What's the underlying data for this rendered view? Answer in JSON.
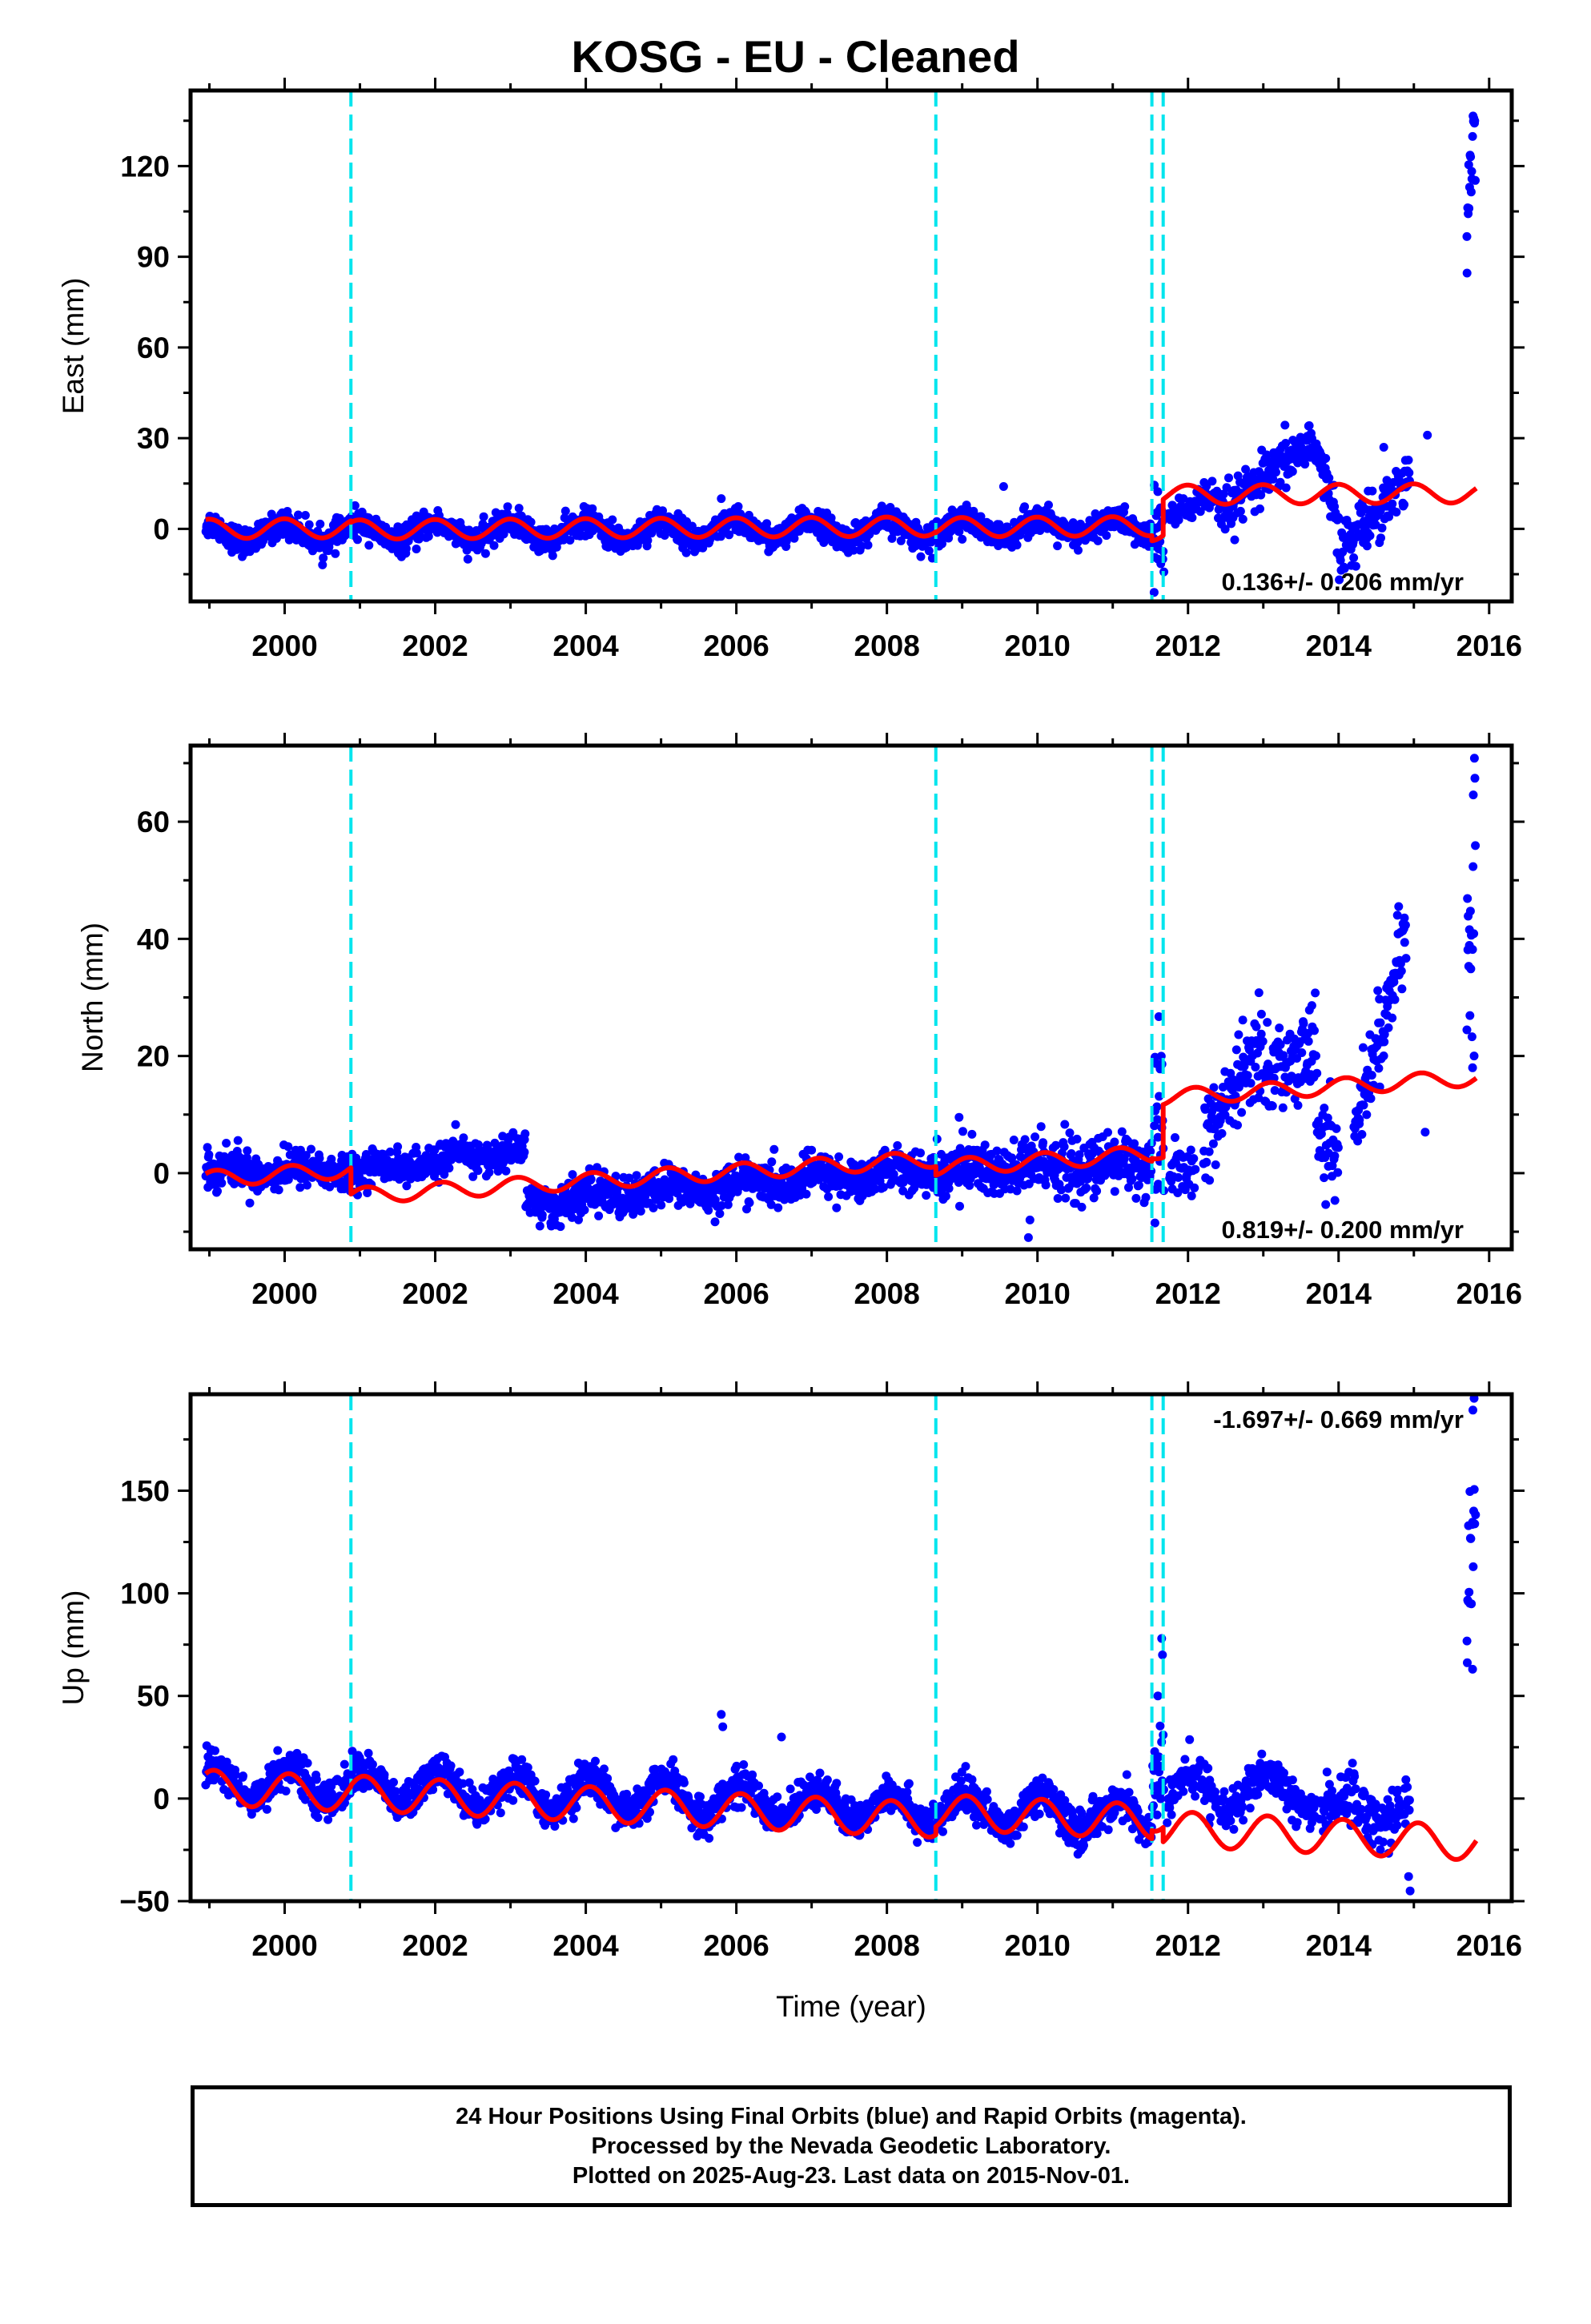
{
  "title": "KOSG  - EU - Cleaned",
  "footer": [
    "24 Hour Positions Using Final Orbits (blue) and Rapid Orbits (magenta).",
    "Processed by the Nevada Geodetic Laboratory.",
    "Plotted on 2025-Aug-23. Last data on 2015-Nov-01."
  ],
  "colors": {
    "data": "#0000ff",
    "model": "#ff0000",
    "step": "#00e5ee",
    "frame": "#000000"
  },
  "chart_data": [
    {
      "type": "scatter",
      "ylabel": "East (mm)",
      "xlabel": "",
      "xlim": [
        1998.75,
        2016.3
      ],
      "ylim": [
        -24,
        145
      ],
      "xticks": [
        2000,
        2002,
        2004,
        2006,
        2008,
        2010,
        2012,
        2014,
        2016
      ],
      "yticks": [
        0,
        30,
        60,
        90,
        120
      ],
      "rate_label": "0.136+/- 0.206 mm/yr",
      "rate_position": "bottom-right",
      "steps": [
        2000.88,
        2008.65,
        2011.52,
        2011.67
      ],
      "series": [
        {
          "role": "daily positions",
          "segments": [
            {
              "x0": 1998.95,
              "x1": 2011.55,
              "offset": -1.5,
              "trend": 0.15,
              "amp": 3.0,
              "phase": 1.6,
              "noise": 2.2,
              "density": 150
            },
            {
              "x0": 2011.55,
              "x1": 2011.68,
              "offset": 0,
              "trend": 0,
              "amp": 0,
              "phase": 0,
              "noise": 8,
              "density": 150
            },
            {
              "x0": 2011.72,
              "x1": 2012.4,
              "offset": 7,
              "trend": 0,
              "amp": 3,
              "phase": 0,
              "noise": 2.5,
              "density": 120
            },
            {
              "x0": 2012.4,
              "x1": 2013.6,
              "offset": 4,
              "trend": 20,
              "amp": 0,
              "phase": 0,
              "noise": 4,
              "density": 120
            },
            {
              "x0": 2013.6,
              "x1": 2014.0,
              "offset": 32,
              "trend": -70,
              "amp": 0,
              "phase": 0,
              "noise": 4,
              "density": 120
            },
            {
              "x0": 2014.0,
              "x1": 2014.95,
              "offset": -8,
              "trend": 28,
              "amp": 0,
              "phase": 0,
              "noise": 4.5,
              "density": 120
            },
            {
              "x0": 2015.7,
              "x1": 2015.82,
              "offset": 100,
              "trend": 300,
              "amp": 0,
              "phase": 0,
              "noise": 10,
              "density": 160
            }
          ],
          "outliers": [
            [
              2011.55,
              -21
            ],
            [
              2011.6,
              -10
            ],
            [
              2005.8,
              10
            ],
            [
              2009.55,
              14
            ],
            [
              2015.18,
              31
            ],
            [
              2014.6,
              27
            ]
          ]
        },
        {
          "role": "model fit",
          "segments": [
            {
              "x0": 1998.95,
              "x1": 2000.88,
              "offset": 0.0,
              "trend": 0.136,
              "amp": 3.2,
              "phase": 1.6
            },
            {
              "x0": 2000.88,
              "x1": 2008.65,
              "offset": -0.5,
              "trend": 0.136,
              "amp": 3.2,
              "phase": 1.6
            },
            {
              "x0": 2008.65,
              "x1": 2011.52,
              "offset": -0.8,
              "trend": 0.136,
              "amp": 3.2,
              "phase": 1.6
            },
            {
              "x0": 2011.52,
              "x1": 2011.67,
              "offset": -2.5,
              "trend": 0.136,
              "amp": 3.2,
              "phase": 1.6
            },
            {
              "x0": 2011.67,
              "x1": 2015.83,
              "offset": 9.5,
              "trend": 0.136,
              "amp": 3.2,
              "phase": 1.6
            }
          ]
        }
      ]
    },
    {
      "type": "scatter",
      "ylabel": "North (mm)",
      "xlabel": "",
      "xlim": [
        1998.75,
        2016.3
      ],
      "ylim": [
        -13,
        73
      ],
      "xticks": [
        2000,
        2002,
        2004,
        2006,
        2008,
        2010,
        2012,
        2014,
        2016
      ],
      "yticks": [
        0,
        20,
        40,
        60
      ],
      "rate_label": "0.819+/- 0.200 mm/yr",
      "rate_position": "bottom-right",
      "steps": [
        2000.88,
        2008.65,
        2011.52,
        2011.67
      ],
      "series": [
        {
          "role": "daily positions",
          "segments": [
            {
              "x0": 1998.95,
              "x1": 2000.88,
              "offset": 0.5,
              "trend": 0,
              "amp": 0.8,
              "phase": 0,
              "noise": 1.6,
              "density": 150
            },
            {
              "x0": 2000.88,
              "x1": 2003.2,
              "offset": 0,
              "trend": 1.8,
              "amp": 0.8,
              "phase": 0,
              "noise": 1.4,
              "density": 150
            },
            {
              "x0": 2003.2,
              "x1": 2008.65,
              "offset": -5,
              "trend": 1.05,
              "amp": 1.0,
              "phase": 1.0,
              "noise": 1.7,
              "density": 150
            },
            {
              "x0": 2008.65,
              "x1": 2011.52,
              "offset": 0.5,
              "trend": 0.3,
              "amp": 1.0,
              "phase": 1.0,
              "noise": 2.5,
              "density": 150
            },
            {
              "x0": 2011.55,
              "x1": 2011.68,
              "offset": 6,
              "trend": 0,
              "amp": 0,
              "phase": 0,
              "noise": 8,
              "density": 150
            },
            {
              "x0": 2011.75,
              "x1": 2012.1,
              "offset": 0,
              "trend": 3,
              "amp": 0,
              "phase": 0,
              "noise": 2.5,
              "density": 100
            },
            {
              "x0": 2012.2,
              "x1": 2013.0,
              "offset": 4,
              "trend": 25,
              "amp": 0,
              "phase": 0,
              "noise": 3.5,
              "density": 120
            },
            {
              "x0": 2013.0,
              "x1": 2013.7,
              "offset": 15,
              "trend": 12,
              "amp": 0,
              "phase": 0,
              "noise": 4,
              "density": 120
            },
            {
              "x0": 2013.7,
              "x1": 2014.0,
              "offset": 8,
              "trend": -18,
              "amp": 0,
              "phase": 0,
              "noise": 4,
              "density": 120
            },
            {
              "x0": 2014.2,
              "x1": 2014.9,
              "offset": 6,
              "trend": 50,
              "amp": 0,
              "phase": 0,
              "noise": 3.5,
              "density": 130
            },
            {
              "x0": 2015.7,
              "x1": 2015.82,
              "offset": 28,
              "trend": 250,
              "amp": 0,
              "phase": 0,
              "noise": 9,
              "density": 160
            }
          ],
          "outliers": [
            [
              2009.88,
              -11
            ],
            [
              2009.9,
              -8
            ],
            [
              2011.56,
              -8.5
            ],
            [
              2015.15,
              7
            ],
            [
              2015.78,
              18
            ],
            [
              2015.8,
              20
            ]
          ]
        },
        {
          "role": "model fit",
          "segments": [
            {
              "x0": 1998.95,
              "x1": 2000.88,
              "offset": -1.0,
              "trend": 0.819,
              "amp": 1.4,
              "phase": 1.0
            },
            {
              "x0": 2000.88,
              "x1": 2008.65,
              "offset": -5.5,
              "trend": 0.819,
              "amp": 1.4,
              "phase": 1.0
            },
            {
              "x0": 2008.65,
              "x1": 2011.52,
              "offset": -7.0,
              "trend": 0.819,
              "amp": 1.4,
              "phase": 1.0
            },
            {
              "x0": 2011.52,
              "x1": 2011.67,
              "offset": -6.5,
              "trend": 0.819,
              "amp": 1.4,
              "phase": 1.0
            },
            {
              "x0": 2011.67,
              "x1": 2015.83,
              "offset": 2.5,
              "trend": 0.819,
              "amp": 1.4,
              "phase": 1.0
            }
          ]
        }
      ]
    },
    {
      "type": "scatter",
      "ylabel": "Up (mm)",
      "xlabel": "Time (year)",
      "xlim": [
        1998.75,
        2016.3
      ],
      "ylim": [
        -50,
        197
      ],
      "xticks": [
        2000,
        2002,
        2004,
        2006,
        2008,
        2010,
        2012,
        2014,
        2016
      ],
      "yticks": [
        -50,
        0,
        50,
        100,
        150
      ],
      "rate_label": "-1.697+/- 0.669 mm/yr",
      "rate_position": "top-right",
      "steps": [
        2000.88,
        2008.65,
        2011.52,
        2011.67
      ],
      "series": [
        {
          "role": "daily positions",
          "segments": [
            {
              "x0": 1998.95,
              "x1": 2011.52,
              "offset": 9,
              "trend": -1.45,
              "amp": 8,
              "phase": 1.2,
              "noise": 4.5,
              "density": 150
            },
            {
              "x0": 2011.52,
              "x1": 2011.68,
              "offset": 10,
              "trend": 0,
              "amp": 0,
              "phase": 0,
              "noise": 12,
              "density": 150
            },
            {
              "x0": 2011.72,
              "x1": 2013.7,
              "offset": 3,
              "trend": 0,
              "amp": 8,
              "phase": 1.2,
              "noise": 5,
              "density": 120
            },
            {
              "x0": 2013.75,
              "x1": 2014.95,
              "offset": -5,
              "trend": 0,
              "amp": 6,
              "phase": 1.2,
              "noise": 7,
              "density": 120
            },
            {
              "x0": 2015.7,
              "x1": 2015.82,
              "offset": 90,
              "trend": 500,
              "amp": 0,
              "phase": 0,
              "noise": 18,
              "density": 160
            }
          ],
          "outliers": [
            [
              2005.8,
              41
            ],
            [
              2005.82,
              35
            ],
            [
              2006.6,
              30
            ],
            [
              2011.65,
              78
            ],
            [
              2011.66,
              70
            ],
            [
              2011.6,
              50
            ],
            [
              2014.95,
              -45
            ],
            [
              2014.93,
              -38
            ],
            [
              2015.78,
              63
            ],
            [
              2015.8,
              195
            ]
          ]
        },
        {
          "role": "model fit",
          "segments": [
            {
              "x0": 1998.95,
              "x1": 2000.88,
              "offset": 5.5,
              "trend": -1.697,
              "amp": 8.5,
              "phase": 1.2
            },
            {
              "x0": 2000.88,
              "x1": 2008.65,
              "offset": 6.0,
              "trend": -1.697,
              "amp": 8.5,
              "phase": 1.2
            },
            {
              "x0": 2008.65,
              "x1": 2011.52,
              "offset": 10.0,
              "trend": -1.697,
              "amp": 8.5,
              "phase": 1.2
            },
            {
              "x0": 2011.52,
              "x1": 2011.67,
              "offset": 14.0,
              "trend": -1.697,
              "amp": 8.5,
              "phase": 1.2
            },
            {
              "x0": 2011.67,
              "x1": 2015.83,
              "offset": 7.0,
              "trend": -1.697,
              "amp": 8.5,
              "phase": 1.2
            }
          ]
        }
      ]
    }
  ]
}
